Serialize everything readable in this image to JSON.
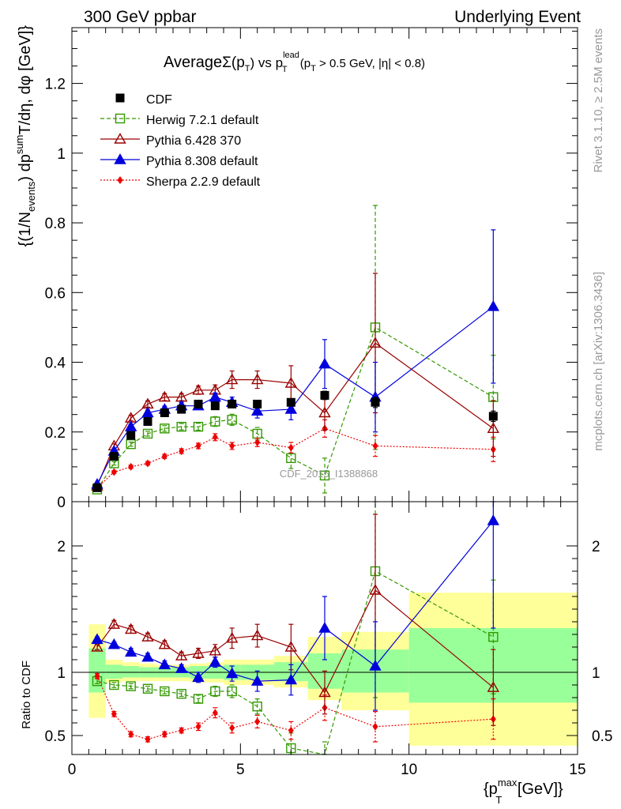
{
  "header": {
    "left": "300 GeV ppbar",
    "right": "Underlying Event"
  },
  "side_labels": {
    "rivet": "Rivet 3.1.10, ≥ 2.5M events",
    "mcplots": "mcplots.cern.ch [arXiv:1306.3436]"
  },
  "watermark": "CDF_2015_I1388868",
  "colors": {
    "cdf": "#000000",
    "herwig": "#339900",
    "pythia6": "#990000",
    "pythia8": "#0000dd",
    "sherpa": "#ee0000",
    "band_yellow": "#ffff99",
    "band_green": "#99ff99"
  },
  "chart_data": [
    {
      "type": "scatter",
      "panel": "main",
      "title_parts": {
        "average": "Average",
        "sigma": "Σ(p",
        "sigma_sub": "T",
        "sigma_close": ")",
        "vs": " vs p",
        "lead_sup": "lead",
        "lead_sub": "T",
        "cut_open": " (p",
        "cut_sub": "T",
        "cut_rest": " > 0.5 GeV, |η| < 0.8)"
      },
      "ylabel_parts": {
        "p1": "{(1/N",
        "events_sub": "events",
        "p2": ") dp",
        "sum_sup": "sum",
        "p3": "T",
        "p4": "/dη, dφ [GeV]}"
      },
      "xlim": [
        0,
        15
      ],
      "ylim": [
        0,
        1.36
      ],
      "yticks": [
        0,
        0.2,
        0.4,
        0.6,
        0.8,
        1,
        1.2
      ],
      "ytick_labels": [
        "0",
        "0.2",
        "0.4",
        "0.6",
        "0.8",
        "1",
        "1.2"
      ],
      "legend_position": "top-left",
      "series": [
        {
          "name": "CDF",
          "key": "cdf",
          "marker": "square-filled",
          "line": "none",
          "x": [
            0.75,
            1.25,
            1.75,
            2.25,
            2.75,
            3.25,
            3.75,
            4.25,
            4.75,
            5.5,
            6.5,
            7.5,
            9.0,
            12.5
          ],
          "y": [
            0.04,
            0.13,
            0.19,
            0.23,
            0.255,
            0.265,
            0.28,
            0.275,
            0.28,
            0.28,
            0.285,
            0.305,
            0.285,
            0.245
          ],
          "yerr": [
            0.005,
            0.008,
            0.008,
            0.008,
            0.008,
            0.008,
            0.008,
            0.01,
            0.01,
            0.01,
            0.01,
            0.012,
            0.015,
            0.015
          ]
        },
        {
          "name": "Herwig 7.2.1 default",
          "key": "herwig",
          "marker": "square-open",
          "line": "dashed",
          "x": [
            0.75,
            1.25,
            1.75,
            2.25,
            2.75,
            3.25,
            3.75,
            4.25,
            4.75,
            5.5,
            6.5,
            7.5,
            9.0,
            12.5
          ],
          "y": [
            0.035,
            0.11,
            0.165,
            0.195,
            0.21,
            0.215,
            0.215,
            0.23,
            0.235,
            0.195,
            0.125,
            0.075,
            0.5,
            0.3
          ],
          "yerr": [
            0.003,
            0.005,
            0.006,
            0.007,
            0.008,
            0.009,
            0.01,
            0.014,
            0.016,
            0.018,
            0.03,
            0.05,
            0.35,
            0.12
          ]
        },
        {
          "name": "Pythia 6.428 370",
          "key": "pythia6",
          "marker": "triangle-open",
          "line": "solid",
          "x": [
            0.75,
            1.25,
            1.75,
            2.25,
            2.75,
            3.25,
            3.75,
            4.25,
            4.75,
            5.5,
            6.5,
            7.5,
            9.0,
            12.5
          ],
          "y": [
            0.045,
            0.16,
            0.24,
            0.28,
            0.3,
            0.3,
            0.32,
            0.32,
            0.35,
            0.35,
            0.34,
            0.255,
            0.455,
            0.21
          ],
          "yerr": [
            0.003,
            0.006,
            0.008,
            0.009,
            0.01,
            0.01,
            0.012,
            0.015,
            0.025,
            0.025,
            0.05,
            0.05,
            0.2,
            0.08
          ]
        },
        {
          "name": "Pythia 8.308 default",
          "key": "pythia8",
          "marker": "triangle-filled",
          "line": "solid",
          "x": [
            0.75,
            1.25,
            1.75,
            2.25,
            2.75,
            3.25,
            3.75,
            4.25,
            4.75,
            5.5,
            6.5,
            7.5,
            9.0,
            12.5
          ],
          "y": [
            0.05,
            0.145,
            0.215,
            0.255,
            0.265,
            0.275,
            0.275,
            0.3,
            0.285,
            0.26,
            0.265,
            0.395,
            0.3,
            0.56
          ],
          "yerr": [
            0.003,
            0.005,
            0.007,
            0.008,
            0.009,
            0.01,
            0.01,
            0.012,
            0.015,
            0.02,
            0.03,
            0.07,
            0.1,
            0.22
          ]
        },
        {
          "name": "Sherpa 2.2.9 default",
          "key": "sherpa",
          "marker": "diamond-filled",
          "line": "dotted",
          "x": [
            0.75,
            1.25,
            1.75,
            2.25,
            2.75,
            3.25,
            3.75,
            4.25,
            4.75,
            5.5,
            6.5,
            7.5,
            9.0,
            12.5
          ],
          "y": [
            0.04,
            0.085,
            0.1,
            0.11,
            0.13,
            0.145,
            0.16,
            0.185,
            0.16,
            0.17,
            0.155,
            0.21,
            0.16,
            0.15
          ],
          "yerr": [
            0.003,
            0.004,
            0.005,
            0.005,
            0.006,
            0.007,
            0.008,
            0.01,
            0.01,
            0.012,
            0.015,
            0.025,
            0.03,
            0.035
          ]
        }
      ]
    },
    {
      "type": "scatter",
      "panel": "ratio",
      "ylabel": "Ratio to CDF",
      "xlabel_parts": {
        "p1": "{p",
        "max_sup": "max",
        "t_sub": "T",
        "p2": " [GeV]}"
      },
      "xlim": [
        0,
        15
      ],
      "ylim": [
        0.35,
        2.35
      ],
      "reference_y": 1,
      "xticks": [
        0,
        5,
        10,
        15
      ],
      "xtick_labels": [
        "0",
        "5",
        "10",
        "15"
      ],
      "yticks": [
        0.5,
        1,
        2
      ],
      "ytick_labels": [
        "0.5",
        "1",
        "2"
      ],
      "bands": {
        "edges": [
          0.5,
          1.0,
          1.5,
          2.0,
          2.5,
          3.0,
          3.5,
          4.0,
          4.5,
          5.0,
          6.0,
          7.0,
          8.0,
          10.0,
          15.0
        ],
        "yellow_lo": [
          0.64,
          0.92,
          0.93,
          0.93,
          0.93,
          0.93,
          0.92,
          0.92,
          0.9,
          0.9,
          0.88,
          0.78,
          0.7,
          0.42
        ],
        "yellow_hi": [
          1.38,
          1.1,
          1.08,
          1.07,
          1.06,
          1.06,
          1.07,
          1.08,
          1.1,
          1.1,
          1.13,
          1.28,
          1.32,
          1.63
        ],
        "green_lo": [
          0.84,
          0.95,
          0.96,
          0.96,
          0.96,
          0.96,
          0.95,
          0.95,
          0.94,
          0.94,
          0.93,
          0.87,
          0.84,
          0.76
        ],
        "green_hi": [
          1.19,
          1.06,
          1.05,
          1.04,
          1.04,
          1.04,
          1.05,
          1.05,
          1.06,
          1.06,
          1.08,
          1.15,
          1.18,
          1.35
        ]
      },
      "series": [
        {
          "key": "herwig",
          "marker": "square-open",
          "line": "dashed",
          "x": [
            0.75,
            1.25,
            1.75,
            2.25,
            2.75,
            3.25,
            3.75,
            4.25,
            4.75,
            5.5,
            6.5,
            7.5,
            9.0,
            12.5
          ],
          "y": [
            0.93,
            0.9,
            0.89,
            0.87,
            0.85,
            0.83,
            0.79,
            0.85,
            0.85,
            0.73,
            0.4,
            0.25,
            1.8,
            1.28
          ],
          "yerr": [
            0.02,
            0.02,
            0.02,
            0.02,
            0.02,
            0.02,
            0.03,
            0.04,
            0.05,
            0.06,
            0.12,
            0.2,
            1.0,
            0.45
          ]
        },
        {
          "key": "pythia6",
          "marker": "triangle-open",
          "line": "solid",
          "x": [
            0.75,
            1.25,
            1.75,
            2.25,
            2.75,
            3.25,
            3.75,
            4.25,
            4.75,
            5.5,
            6.5,
            7.5,
            9.0,
            12.5
          ],
          "y": [
            1.2,
            1.38,
            1.34,
            1.28,
            1.22,
            1.13,
            1.15,
            1.17,
            1.27,
            1.29,
            1.2,
            0.84,
            1.65,
            0.88
          ],
          "yerr": [
            0.02,
            0.03,
            0.03,
            0.03,
            0.03,
            0.03,
            0.04,
            0.05,
            0.08,
            0.09,
            0.18,
            0.17,
            0.6,
            0.3
          ]
        },
        {
          "key": "pythia8",
          "marker": "triangle-filled",
          "line": "solid",
          "x": [
            0.75,
            1.25,
            1.75,
            2.25,
            2.75,
            3.25,
            3.75,
            4.25,
            4.75,
            5.5,
            6.5,
            7.5,
            9.0,
            12.5
          ],
          "y": [
            1.26,
            1.22,
            1.16,
            1.12,
            1.06,
            1.03,
            0.96,
            1.08,
            0.99,
            0.93,
            0.94,
            1.35,
            1.05,
            2.2
          ],
          "yerr": [
            0.02,
            0.02,
            0.03,
            0.03,
            0.03,
            0.03,
            0.04,
            0.04,
            0.06,
            0.08,
            0.12,
            0.25,
            0.35,
            0.85
          ]
        },
        {
          "key": "sherpa",
          "marker": "diamond-filled",
          "line": "dotted",
          "x": [
            0.75,
            1.25,
            1.75,
            2.25,
            2.75,
            3.25,
            3.75,
            4.25,
            4.75,
            5.5,
            6.5,
            7.5,
            9.0,
            12.5
          ],
          "y": [
            0.97,
            0.67,
            0.51,
            0.47,
            0.51,
            0.54,
            0.57,
            0.68,
            0.56,
            0.61,
            0.54,
            0.72,
            0.57,
            0.63
          ],
          "yerr": [
            0.02,
            0.02,
            0.02,
            0.02,
            0.02,
            0.02,
            0.03,
            0.04,
            0.04,
            0.05,
            0.07,
            0.1,
            0.12,
            0.16
          ]
        }
      ]
    }
  ]
}
